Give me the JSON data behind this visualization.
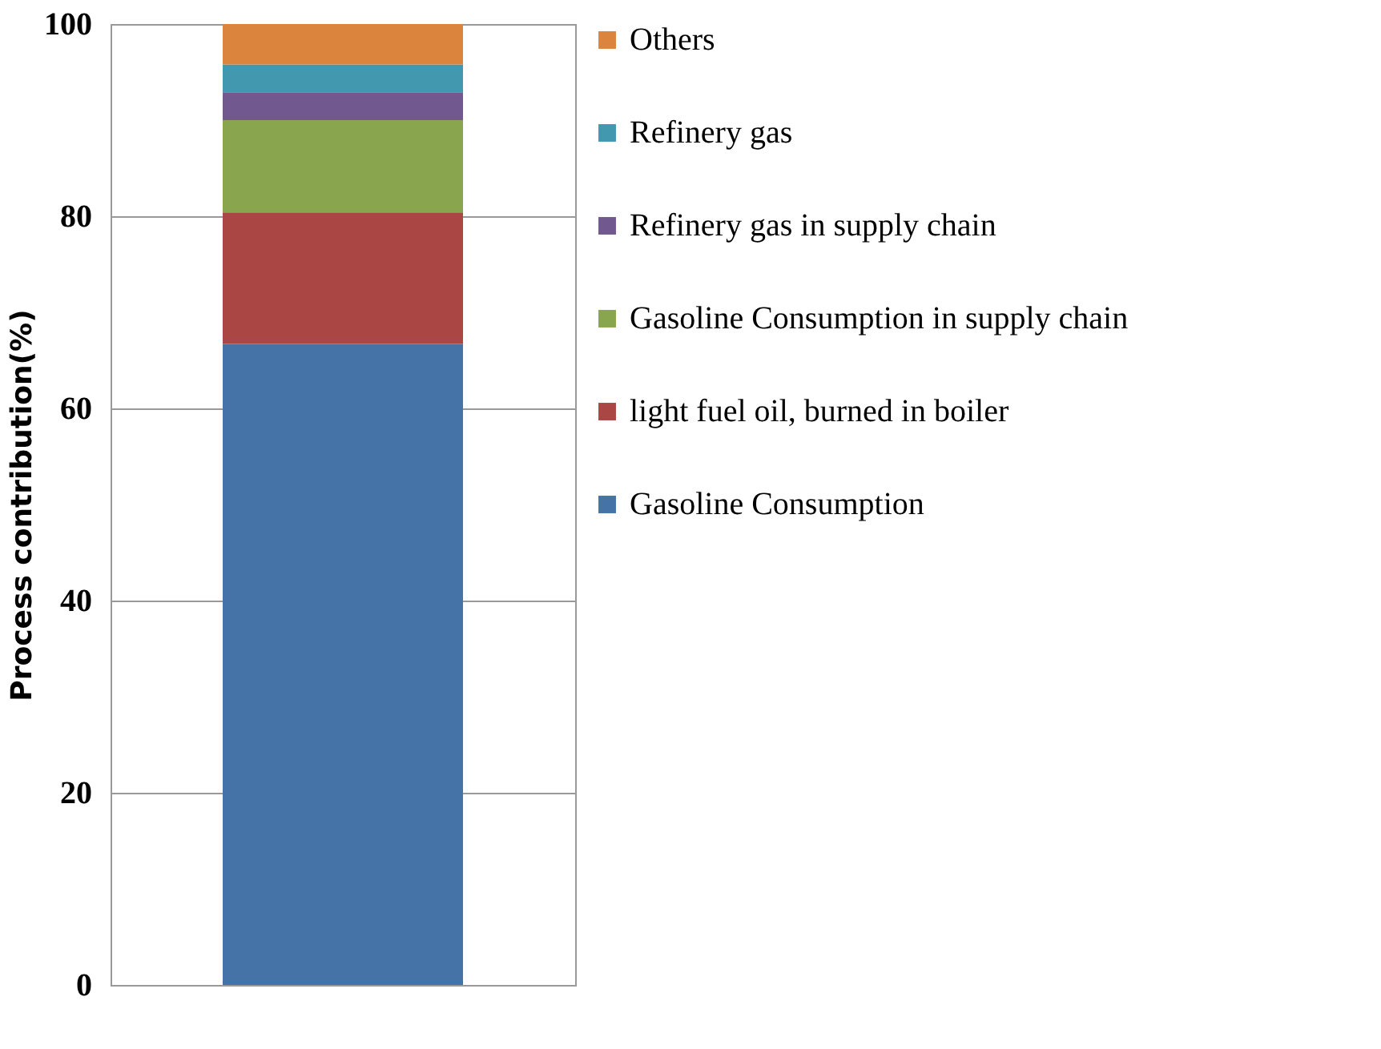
{
  "chart_data": {
    "type": "bar",
    "stacked": true,
    "categories": [
      null
    ],
    "ylabel": "Process contribution(%)",
    "ylim": [
      0,
      100
    ],
    "yticks": [
      0,
      20,
      40,
      60,
      80,
      100
    ],
    "grid": "y",
    "legend": "right",
    "series": [
      {
        "name": "Gasoline Consumption",
        "color": "#4572a7",
        "values": [
          66.7
        ]
      },
      {
        "name": "light fuel oil, burned in boiler",
        "color": "#aa4643",
        "values": [
          13.7
        ]
      },
      {
        "name": "Gasoline Consumption in supply chain",
        "color": "#89a54e",
        "values": [
          9.6
        ]
      },
      {
        "name": "Refinery gas in supply chain",
        "color": "#71588f",
        "values": [
          2.9
        ]
      },
      {
        "name": "Refinery gas",
        "color": "#4198af",
        "values": [
          2.9
        ]
      },
      {
        "name": "Others",
        "color": "#db843d",
        "values": [
          4.2
        ]
      }
    ]
  }
}
